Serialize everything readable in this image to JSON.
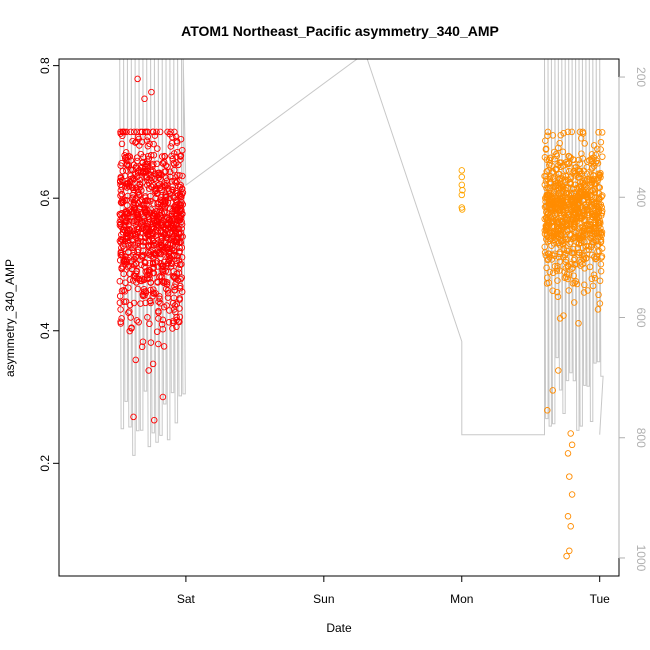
{
  "chart_data": {
    "type": "scatter",
    "title": "ATOM1 Northeast_Pacific asymmetry_340_AMP",
    "xlabel": "Date",
    "ylabel": "asymmetry_340_AMP",
    "ylim": [
      0.03,
      0.81
    ],
    "y_ticks": [
      0.2,
      0.4,
      0.6,
      0.8
    ],
    "x_ticks": [
      {
        "label": "Sat",
        "day": 1
      },
      {
        "label": "Sun",
        "day": 2
      },
      {
        "label": "Mon",
        "day": 3
      },
      {
        "label": "Tue",
        "day": 4
      }
    ],
    "xlim": [
      0.08,
      4.14
    ],
    "right_axis": {
      "label": "",
      "ticks": [
        200,
        400,
        600,
        800,
        1000
      ],
      "lim": [
        1030,
        170
      ],
      "color": "#b0b0b0"
    },
    "series": [
      {
        "color": "#ff0000",
        "x_range": [
          0.52,
          0.98
        ],
        "y_center": 0.56,
        "y_spread": 0.07,
        "outliers": [
          [
            0.62,
            0.27
          ],
          [
            0.77,
            0.265
          ],
          [
            0.65,
            0.78
          ],
          [
            0.7,
            0.75
          ],
          [
            0.75,
            0.76
          ],
          [
            0.6,
            0.42
          ],
          [
            0.8,
            0.38
          ],
          [
            0.73,
            0.34
          ]
        ]
      },
      {
        "color": "#ffa500",
        "x_range": [
          3.0,
          3.01
        ],
        "points": [
          [
            3.0,
            0.642
          ],
          [
            3.0,
            0.632
          ],
          [
            3.0,
            0.62
          ],
          [
            3.005,
            0.612
          ],
          [
            3.0,
            0.605
          ],
          [
            3.0,
            0.586
          ],
          [
            3.003,
            0.583
          ]
        ]
      },
      {
        "color": "#ff8c00",
        "x_range": [
          3.6,
          4.02
        ],
        "y_center": 0.58,
        "y_spread": 0.05,
        "outliers": [
          [
            3.76,
            0.06
          ],
          [
            3.78,
            0.068
          ],
          [
            3.77,
            0.12
          ],
          [
            3.79,
            0.105
          ],
          [
            3.8,
            0.153
          ],
          [
            3.78,
            0.18
          ],
          [
            3.77,
            0.215
          ],
          [
            3.8,
            0.228
          ],
          [
            3.79,
            0.245
          ],
          [
            3.62,
            0.28
          ],
          [
            3.7,
            0.34
          ],
          [
            3.66,
            0.31
          ]
        ]
      }
    ],
    "depth_line": {
      "color": "#c8c8c8"
    }
  }
}
